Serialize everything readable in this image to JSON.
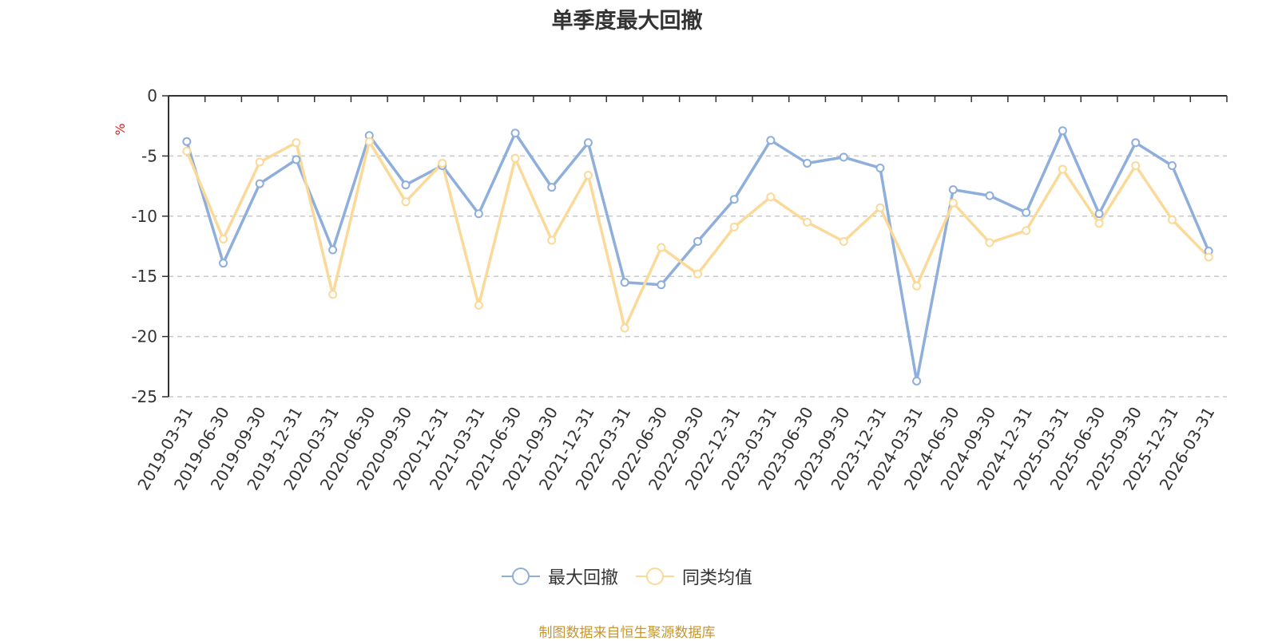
{
  "chart_data": {
    "type": "line",
    "title": "单季度最大回撤",
    "ylabel": "%",
    "ylim": [
      -25,
      0
    ],
    "yticks": [
      0,
      -5,
      -10,
      -15,
      -20,
      -25
    ],
    "grid": true,
    "legend_position": "bottom-center",
    "categories": [
      "2019-03-31",
      "2019-06-30",
      "2019-09-30",
      "2019-12-31",
      "2020-03-31",
      "2020-06-30",
      "2020-09-30",
      "2020-12-31",
      "2021-03-31",
      "2021-06-30",
      "2021-09-30",
      "2021-12-31",
      "2022-03-31",
      "2022-06-30",
      "2022-09-30",
      "2022-12-31",
      "2023-03-31",
      "2023-06-30",
      "2023-09-30",
      "2023-12-31",
      "2024-03-31",
      "2024-06-30",
      "2024-09-30",
      "2024-12-31",
      "2025-03-31",
      "2025-06-30",
      "2025-09-30",
      "2025-12-31",
      "2026-03-31"
    ],
    "series": [
      {
        "name": "最大回撤",
        "color": "#8eaedb",
        "values": [
          -3.8,
          -13.9,
          -7.3,
          -5.3,
          -12.8,
          -3.3,
          -7.4,
          -5.8,
          -9.8,
          -3.1,
          -7.6,
          -3.9,
          -15.5,
          -15.7,
          -12.1,
          -8.6,
          -3.7,
          -5.6,
          -5.1,
          -6.0,
          -23.7,
          -7.8,
          -8.3,
          -9.7,
          -2.9,
          -9.8,
          -3.9,
          -5.8,
          -12.9
        ]
      },
      {
        "name": "同类均值",
        "color": "#fbd999",
        "values": [
          -4.6,
          -11.9,
          -5.5,
          -3.9,
          -16.5,
          -3.8,
          -8.8,
          -5.6,
          -17.4,
          -5.2,
          -12.0,
          -6.6,
          -19.3,
          -12.6,
          -14.8,
          -10.9,
          -8.4,
          -10.5,
          -12.1,
          -9.3,
          -15.8,
          -8.9,
          -12.2,
          -11.2,
          -6.1,
          -10.6,
          -5.8,
          -10.3,
          -13.4
        ]
      }
    ]
  },
  "source_note": "制图数据来自恒生聚源数据库"
}
